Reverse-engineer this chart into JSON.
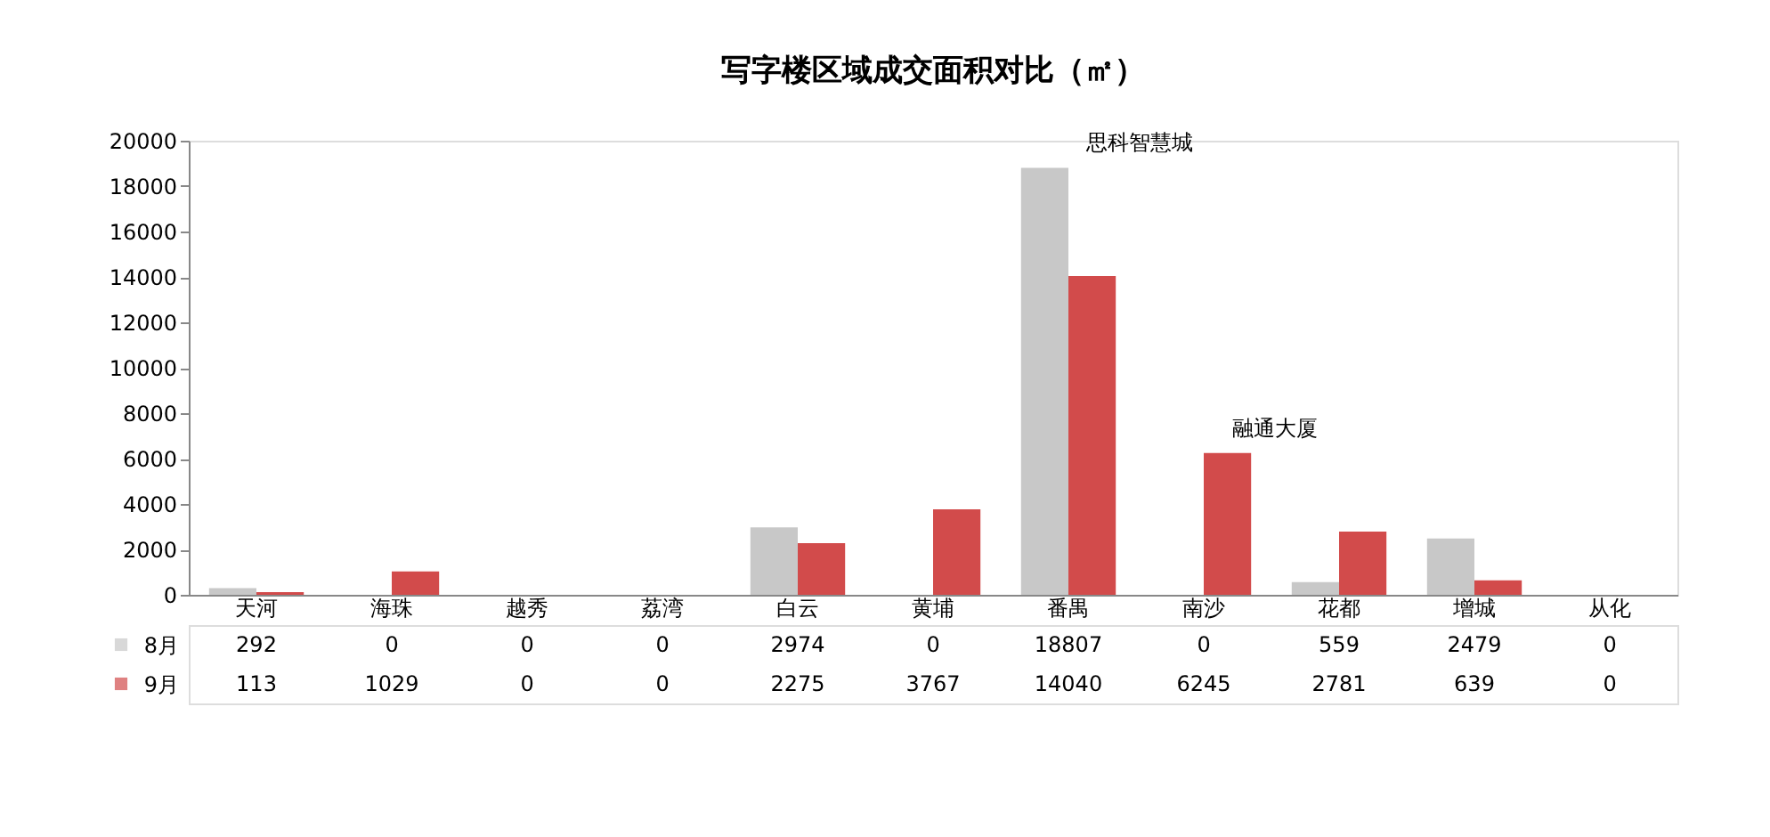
{
  "chart_data": {
    "type": "bar",
    "title": "写字楼区域成交面积对比（㎡）",
    "categories": [
      "天河",
      "海珠",
      "越秀",
      "荔湾",
      "白云",
      "黄埔",
      "番禺",
      "南沙",
      "花都",
      "增城",
      "从化"
    ],
    "series": [
      {
        "name": "8月",
        "color": "#c8c8c8",
        "values": [
          292,
          0,
          0,
          0,
          2974,
          0,
          18807,
          0,
          559,
          2479,
          0
        ]
      },
      {
        "name": "9月",
        "color": "#d24b4b",
        "values": [
          113,
          1029,
          0,
          0,
          2275,
          3767,
          14040,
          6245,
          2781,
          639,
          0
        ]
      }
    ],
    "ylim": [
      0,
      20000
    ],
    "yticks": [
      0,
      2000,
      4000,
      6000,
      8000,
      10000,
      12000,
      14000,
      16000,
      18000,
      20000
    ],
    "grid": false,
    "data_labels": true,
    "legend": "bottom",
    "annotations": [
      {
        "text": "思科智慧城",
        "x": "番禺",
        "y": 18807
      },
      {
        "text": "融通大厦",
        "x": "南沙",
        "y": 6245
      }
    ]
  }
}
